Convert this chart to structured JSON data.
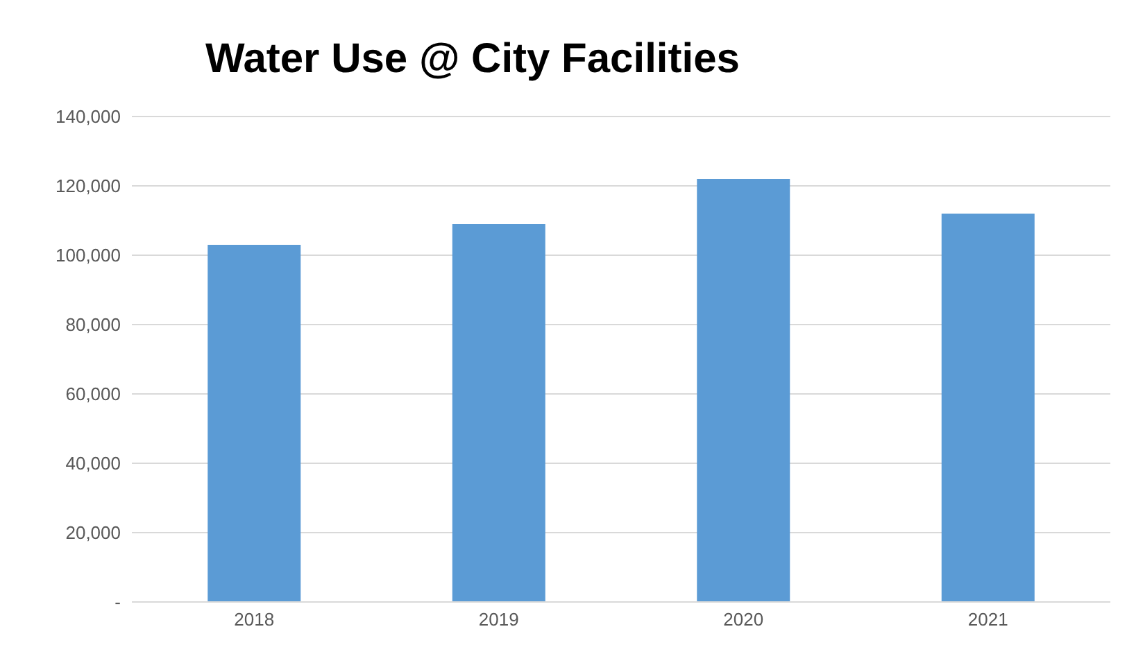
{
  "chart_data": {
    "type": "bar",
    "title": "Water Use @ City Facilities",
    "categories": [
      "2018",
      "2019",
      "2020",
      "2021"
    ],
    "values": [
      103000,
      109000,
      122000,
      112000
    ],
    "color": "#5b9bd5",
    "ylim": [
      0,
      140000
    ],
    "yticks": [
      {
        "value": 0,
        "label": "-"
      },
      {
        "value": 20000,
        "label": "20,000"
      },
      {
        "value": 40000,
        "label": "40,000"
      },
      {
        "value": 60000,
        "label": "60,000"
      },
      {
        "value": 80000,
        "label": "80,000"
      },
      {
        "value": 100000,
        "label": "100,000"
      },
      {
        "value": 120000,
        "label": "120,000"
      },
      {
        "value": 140000,
        "label": "140,000"
      }
    ],
    "grid": "y"
  }
}
